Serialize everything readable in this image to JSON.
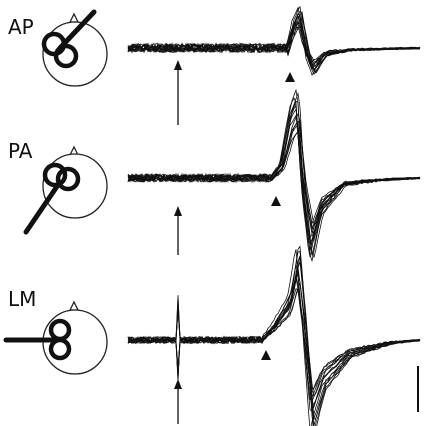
{
  "panels": [
    {
      "label": "AP"
    },
    {
      "label": "PA"
    },
    {
      "label": "LM"
    }
  ]
}
